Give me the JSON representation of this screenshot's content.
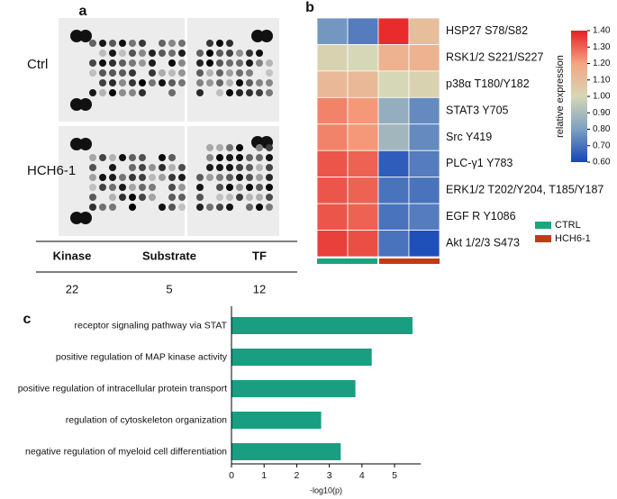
{
  "panel_a": {
    "panel_label": "a",
    "row_labels": [
      "Ctrl",
      "HCH6-1"
    ],
    "table": {
      "header": [
        "Kinase",
        "Substrate",
        "TF"
      ],
      "rows": [
        [
          "22",
          "5",
          "12"
        ]
      ]
    }
  },
  "chart_data": [
    {
      "type": "heatmap",
      "panel_label": "b",
      "rows": [
        "HSP27 S78/S82",
        "RSK1/2 S221/S227",
        "p38α T180/Y182",
        "STAT3 Y705",
        "Src Y419",
        "PLC-γ1 Y783",
        "ERK1/2 T202/Y204, T185/Y187",
        "EGF R Y1086",
        "Akt 1/2/3 S473"
      ],
      "values": [
        [
          0.78,
          0.72,
          1.38,
          1.1
        ],
        [
          1.02,
          1.0,
          1.15,
          1.15
        ],
        [
          1.12,
          1.12,
          1.0,
          1.02
        ],
        [
          1.25,
          1.22,
          0.85,
          0.75
        ],
        [
          1.25,
          1.22,
          0.88,
          0.75
        ],
        [
          1.32,
          1.3,
          0.65,
          0.72
        ],
        [
          1.32,
          1.3,
          0.7,
          0.7
        ],
        [
          1.32,
          1.3,
          0.7,
          0.72
        ],
        [
          1.35,
          1.33,
          0.7,
          0.62
        ]
      ],
      "groups": [
        {
          "name": "CTRL",
          "color": "#1aa57f"
        },
        {
          "name": "HCH6-1",
          "color": "#c23b14"
        }
      ],
      "colorbar": {
        "label": "relative expression",
        "lim": [
          0.6,
          1.4
        ],
        "ticks": [
          {
            "value": 1.4,
            "label": "1.40"
          },
          {
            "value": 1.3,
            "label": "1.30"
          },
          {
            "value": 1.2,
            "label": "1.20"
          },
          {
            "value": 1.1,
            "label": "1.10"
          },
          {
            "value": 1.0,
            "label": "1.00"
          },
          {
            "value": 0.9,
            "label": "0.90"
          },
          {
            "value": 0.8,
            "label": "0.80"
          },
          {
            "value": 0.7,
            "label": "0.70"
          },
          {
            "value": 0.6,
            "label": "0.60"
          }
        ],
        "colors": [
          "#1446b8",
          "#7ea0c2",
          "#d6d7b6",
          "#f5a582",
          "#e61f24"
        ]
      }
    },
    {
      "type": "bar",
      "orientation": "horizontal",
      "panel_label": "c",
      "categories": [
        "receptor signaling pathway via STAT",
        "positive regulation of MAP kinase activity",
        "positive regulation of intracellular protein transport",
        "regulation of cytoskeleton organization",
        "negative regulation of myeloid cell differentiation"
      ],
      "values": [
        5.55,
        4.3,
        3.8,
        2.75,
        3.35
      ],
      "color": "#1a9e82",
      "xlabel": "-log10(p)",
      "xlim": [
        0,
        5.8
      ],
      "xticks": [
        0,
        1,
        2,
        3,
        4,
        5
      ]
    }
  ]
}
